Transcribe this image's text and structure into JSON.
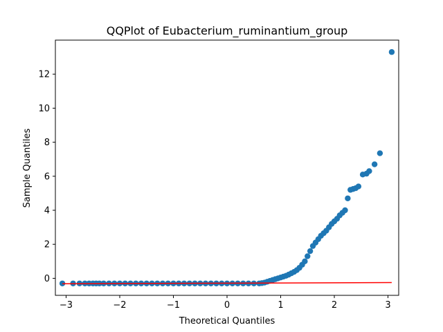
{
  "chart_data": {
    "type": "scatter",
    "title": "QQPlot of Eubacterium_ruminantium_group",
    "xlabel": "Theoretical Quantiles",
    "ylabel": "Sample Quantiles",
    "xlim": [
      -3.2,
      3.2
    ],
    "ylim": [
      -1.0,
      14.0
    ],
    "xticks": [
      -3,
      -2,
      -1,
      0,
      1,
      2,
      3
    ],
    "xtick_labels": [
      "−3",
      "−2",
      "−1",
      "0",
      "1",
      "2",
      "3"
    ],
    "yticks": [
      0,
      2,
      4,
      6,
      8,
      10,
      12
    ],
    "ytick_labels": [
      "0",
      "2",
      "4",
      "6",
      "8",
      "10",
      "12"
    ],
    "grid": false,
    "colors": {
      "points": "#1f77b4",
      "line": "#ff0000"
    },
    "series": [
      {
        "kind": "points",
        "x": [
          -3.07,
          -2.87,
          -2.75,
          -2.65,
          -2.57,
          -2.5,
          -2.44,
          -2.38,
          -2.3,
          -2.2,
          -2.1,
          -2.0,
          -1.9,
          -1.8,
          -1.7,
          -1.6,
          -1.5,
          -1.4,
          -1.3,
          -1.2,
          -1.1,
          -1.0,
          -0.9,
          -0.8,
          -0.7,
          -0.6,
          -0.5,
          -0.4,
          -0.3,
          -0.2,
          -0.1,
          0.0,
          0.1,
          0.2,
          0.3,
          0.4,
          0.5,
          0.6,
          0.65,
          0.7,
          0.75,
          0.8,
          0.85,
          0.9,
          0.95,
          1.0,
          1.05,
          1.1,
          1.15,
          1.2,
          1.25,
          1.3,
          1.35,
          1.4,
          1.45,
          1.5,
          1.55,
          1.6,
          1.65,
          1.7,
          1.75,
          1.8,
          1.85,
          1.9,
          1.95,
          2.0,
          2.05,
          2.1,
          2.15,
          2.2,
          2.25,
          2.3,
          2.35,
          2.4,
          2.45,
          2.53,
          2.6,
          2.65,
          2.75,
          2.85,
          3.07
        ],
        "y": [
          -0.3,
          -0.3,
          -0.3,
          -0.3,
          -0.3,
          -0.3,
          -0.3,
          -0.3,
          -0.3,
          -0.3,
          -0.3,
          -0.3,
          -0.3,
          -0.3,
          -0.3,
          -0.3,
          -0.3,
          -0.3,
          -0.3,
          -0.3,
          -0.3,
          -0.3,
          -0.3,
          -0.3,
          -0.3,
          -0.3,
          -0.3,
          -0.3,
          -0.3,
          -0.3,
          -0.3,
          -0.3,
          -0.3,
          -0.3,
          -0.3,
          -0.3,
          -0.3,
          -0.3,
          -0.28,
          -0.25,
          -0.2,
          -0.15,
          -0.1,
          -0.05,
          0.0,
          0.05,
          0.1,
          0.15,
          0.22,
          0.3,
          0.38,
          0.48,
          0.62,
          0.8,
          1.0,
          1.3,
          1.6,
          1.9,
          2.1,
          2.3,
          2.5,
          2.65,
          2.8,
          3.0,
          3.2,
          3.35,
          3.5,
          3.7,
          3.85,
          4.0,
          4.7,
          5.2,
          5.25,
          5.3,
          5.4,
          6.1,
          6.15,
          6.3,
          6.7,
          7.35,
          13.3
        ]
      },
      {
        "kind": "line",
        "x": [
          -3.07,
          3.07
        ],
        "y": [
          -0.32,
          -0.25
        ]
      }
    ]
  }
}
